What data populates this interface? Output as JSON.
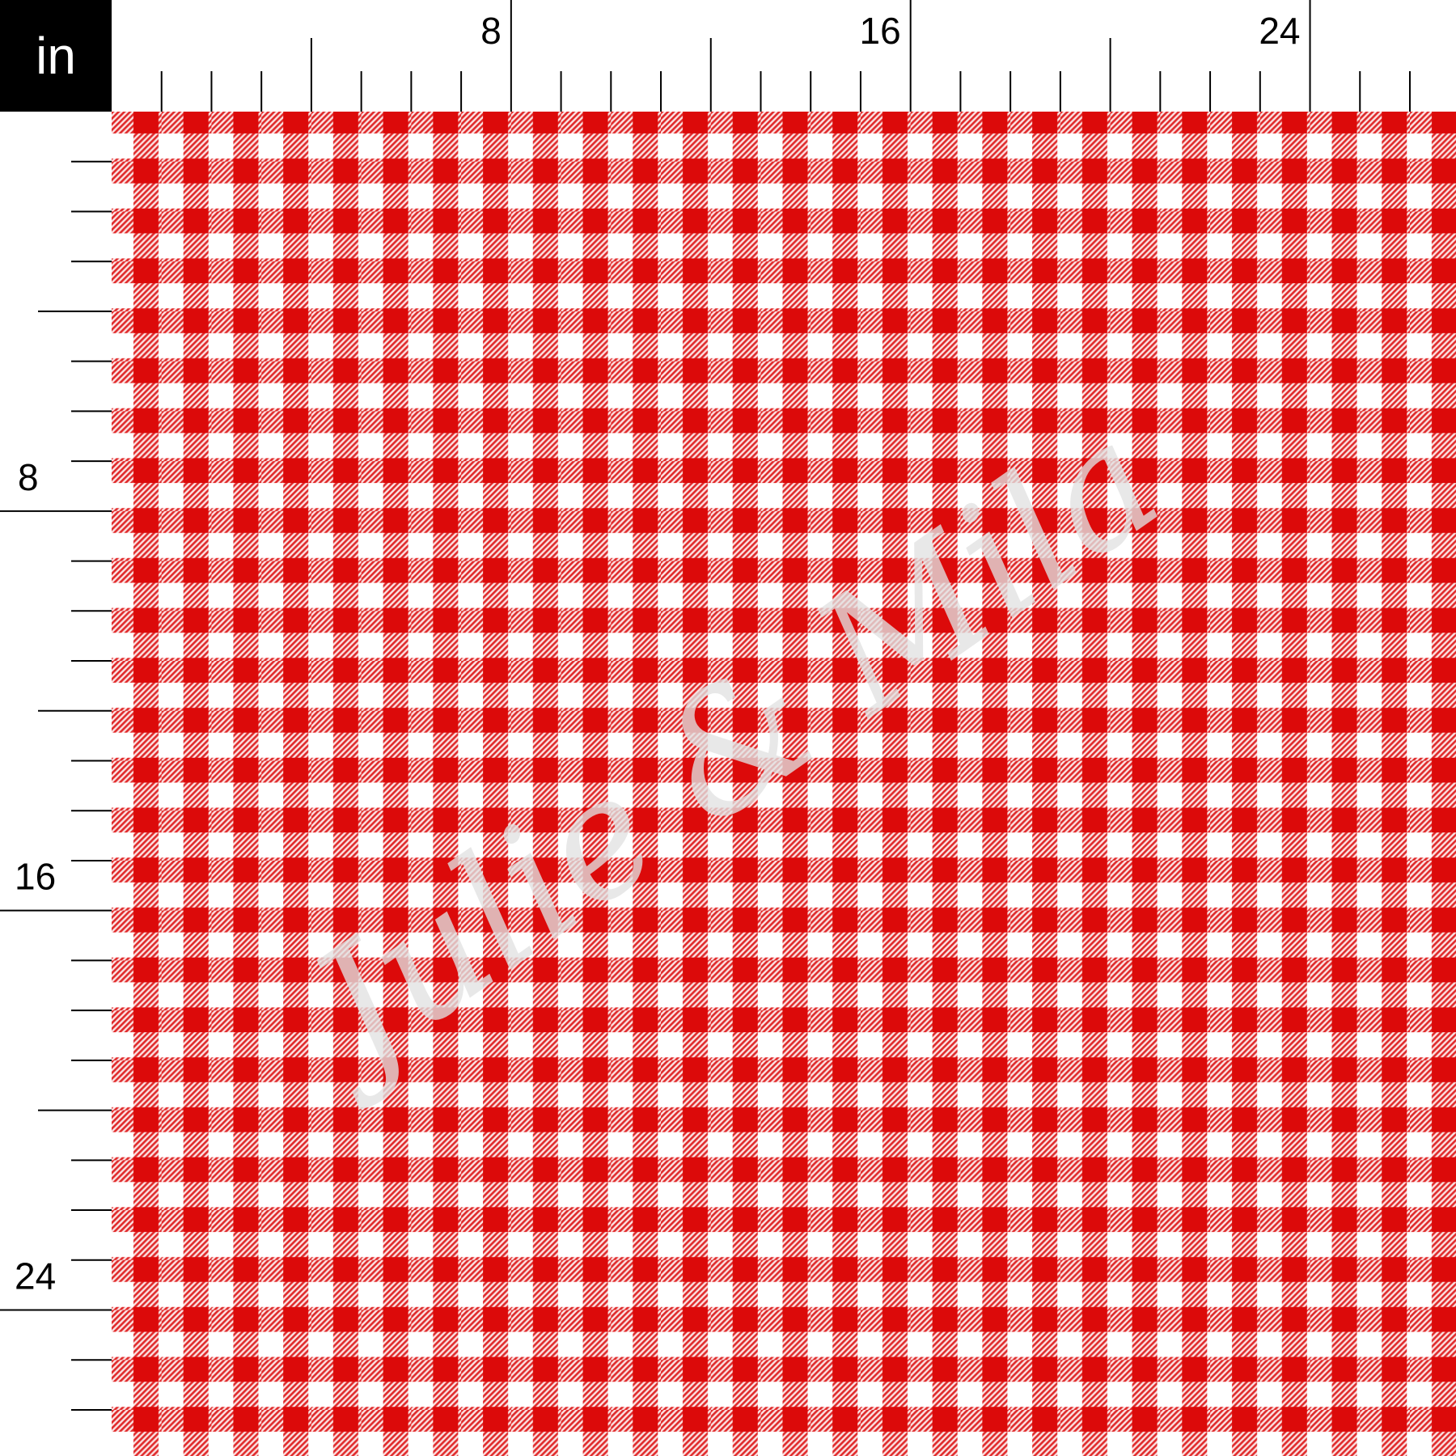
{
  "unit_label": "in",
  "ruler": {
    "inches_shown": 26,
    "top_labels": [
      "8",
      "16",
      "24"
    ],
    "left_labels": [
      "8",
      "16",
      "24"
    ]
  },
  "fabric": {
    "pattern": "gingham",
    "check_size_in": 1,
    "colors": {
      "red": "#dc0a0a",
      "white": "#ffffff",
      "ruler": "#000000"
    }
  },
  "watermark": "Julie & Mila"
}
